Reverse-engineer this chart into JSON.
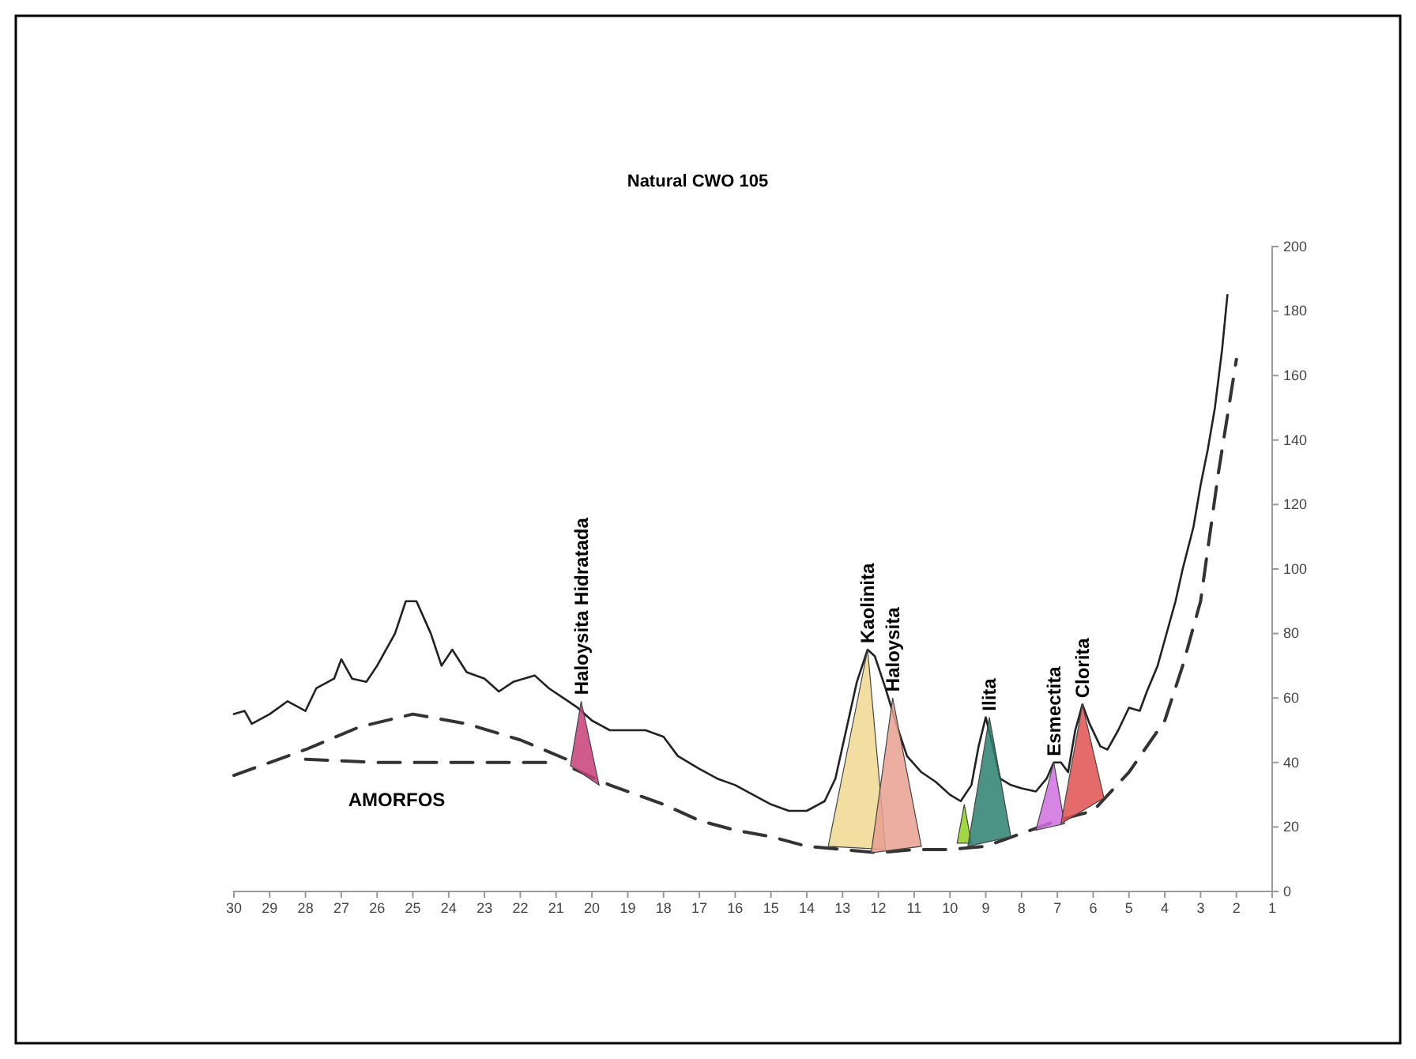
{
  "chart_data": {
    "type": "line",
    "title": "Natural CWO 105",
    "xlim": [
      30,
      1
    ],
    "xticks": [
      30,
      29,
      28,
      27,
      26,
      25,
      24,
      23,
      22,
      21,
      20,
      19,
      18,
      17,
      16,
      15,
      14,
      13,
      12,
      11,
      10,
      9,
      8,
      7,
      6,
      5,
      4,
      3,
      2,
      1
    ],
    "ylim": [
      0,
      200
    ],
    "yticks": [
      0,
      20,
      40,
      60,
      80,
      100,
      120,
      140,
      160,
      180,
      200
    ],
    "marker": "none",
    "annotations": [
      "AMORFOS"
    ],
    "series": [
      {
        "color": "#222222",
        "line_style": "solid",
        "x": [
          30,
          29.7,
          29.5,
          29,
          28.5,
          28,
          27.7,
          27.2,
          27,
          26.7,
          26.3,
          26,
          25.5,
          25.2,
          24.9,
          24.5,
          24.2,
          23.9,
          23.5,
          23,
          22.6,
          22.2,
          21.6,
          21.2,
          20.8,
          20.4,
          20,
          19.5,
          19,
          18.5,
          18,
          17.6,
          17,
          16.5,
          16,
          15.5,
          15,
          14.5,
          14,
          13.5,
          13.2,
          12.9,
          12.6,
          12.3,
          12.1,
          11.8,
          11.5,
          11.2,
          10.8,
          10.4,
          10,
          9.7,
          9.4,
          9.2,
          9,
          8.8,
          8.6,
          8.3,
          8,
          7.6,
          7.3,
          7.1,
          6.9,
          6.7,
          6.5,
          6.3,
          6.1,
          5.8,
          5.6,
          5.3,
          5,
          4.7,
          4.5,
          4.2,
          4,
          3.7,
          3.5,
          3.2,
          3,
          2.8,
          2.6,
          2.4,
          2.25
        ],
        "values": [
          55,
          56,
          52,
          55,
          59,
          56,
          63,
          66,
          72,
          66,
          65,
          70,
          80,
          90,
          90,
          80,
          70,
          75,
          68,
          66,
          62,
          65,
          67,
          63,
          60,
          57,
          53,
          50,
          50,
          50,
          48,
          42,
          38,
          35,
          33,
          30,
          27,
          25,
          25,
          28,
          35,
          50,
          65,
          75,
          73,
          63,
          52,
          42,
          37,
          34,
          30,
          28,
          33,
          45,
          54,
          45,
          35,
          33,
          32,
          31,
          35,
          40,
          40,
          37,
          50,
          58,
          52,
          45,
          44,
          50,
          57,
          56,
          62,
          70,
          78,
          90,
          100,
          113,
          126,
          137,
          150,
          168,
          185
        ]
      },
      {
        "type": "line",
        "color": "#333333",
        "line_style": "dashed",
        "x": [
          30,
          28,
          26.5,
          25,
          23.5,
          22,
          20.5
        ],
        "values": [
          36,
          44,
          51,
          55,
          52,
          47,
          40
        ]
      },
      {
        "type": "line",
        "color": "#333333",
        "line_style": "dashed",
        "x": [
          28,
          26,
          24,
          22,
          21
        ],
        "values": [
          41,
          40,
          40,
          40,
          40
        ]
      },
      {
        "type": "line",
        "color": "#333333",
        "line_style": "dashed",
        "x": [
          20.5,
          19.5,
          18,
          17,
          16,
          15,
          14,
          13,
          12,
          11,
          10,
          9,
          8,
          7,
          6,
          5,
          4,
          3.5,
          3,
          2.5,
          2
        ],
        "values": [
          38,
          33,
          27,
          22,
          19,
          17,
          14,
          13,
          12,
          13,
          13,
          14,
          18,
          22,
          25,
          37,
          53,
          70,
          90,
          130,
          165
        ]
      },
      {
        "type": "area",
        "name": "Haloysita Hidratada",
        "color": "#c8407a",
        "x": [
          20.6,
          20.3,
          19.8
        ],
        "values": [
          39,
          59,
          33
        ]
      },
      {
        "type": "area",
        "name": "Kaolinita",
        "color": "#f0d890",
        "x": [
          13.4,
          12.3,
          11.8
        ],
        "values": [
          14,
          75,
          13
        ]
      },
      {
        "type": "area",
        "name": "Haloysita",
        "color": "#e8a090",
        "x": [
          12.2,
          11.6,
          10.8
        ],
        "values": [
          12,
          60,
          14
        ]
      },
      {
        "type": "area",
        "color": "#90d020",
        "x": [
          9.8,
          9.6,
          9.4
        ],
        "values": [
          15,
          27,
          15
        ]
      },
      {
        "type": "area",
        "name": "Ilita",
        "color": "#2a8070",
        "x": [
          9.5,
          8.9,
          8.3
        ],
        "values": [
          14,
          54,
          17
        ]
      },
      {
        "type": "area",
        "name": "Esmectita",
        "color": "#d070e0",
        "x": [
          7.6,
          7.1,
          6.8
        ],
        "values": [
          19,
          40,
          21
        ]
      },
      {
        "type": "area",
        "name": "Clorita",
        "color": "#e05050",
        "x": [
          6.9,
          6.3,
          5.7
        ],
        "values": [
          21,
          58,
          29
        ]
      }
    ]
  }
}
